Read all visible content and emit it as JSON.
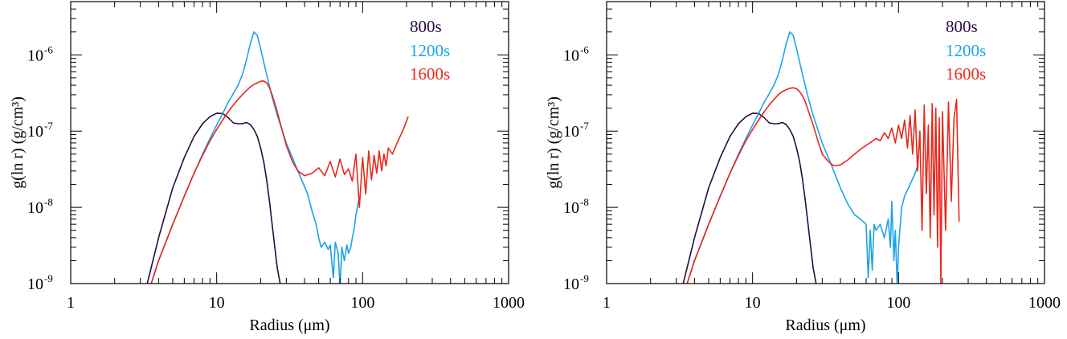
{
  "chart_data": [
    {
      "type": "line",
      "xlabel": "Radius (μm)",
      "ylabel": "g(ln r) (g/cm³)",
      "xscale": "log",
      "yscale": "log",
      "xlim": [
        1,
        1000
      ],
      "ylim": [
        1e-09,
        5e-06
      ],
      "x_ticks": [
        1,
        10,
        100,
        1000
      ],
      "x_tick_labels": [
        "1",
        "10",
        "100",
        "1000"
      ],
      "y_ticks": [
        1e-09,
        1e-08,
        1e-07,
        1e-06
      ],
      "y_tick_labels": [
        {
          "base": "10",
          "exp": "-9"
        },
        {
          "base": "10",
          "exp": "-8"
        },
        {
          "base": "10",
          "exp": "-7"
        },
        {
          "base": "10",
          "exp": "-6"
        }
      ],
      "grid": false,
      "legend_position": "top-right",
      "series": [
        {
          "name": "800s",
          "color": "#2a0a3c",
          "x": [
            3.3,
            4.0,
            5.0,
            6.0,
            7.0,
            8.0,
            9.0,
            10.0,
            11.0,
            12.0,
            13.0,
            14.0,
            15.0,
            16.0,
            17.0,
            18.0,
            19.0,
            20.0,
            21.0,
            22.0,
            23.0,
            24.0,
            25.0,
            26.0,
            27.0,
            27.5
          ],
          "y": [
            9e-10,
            4e-09,
            1.8e-08,
            4.5e-08,
            8.5e-08,
            1.25e-07,
            1.55e-07,
            1.72e-07,
            1.7e-07,
            1.5e-07,
            1.28e-07,
            1.25e-07,
            1.25e-07,
            1.3e-07,
            1.22e-07,
            1.05e-07,
            8.5e-08,
            6e-08,
            4e-08,
            2.3e-08,
            1.2e-08,
            6e-09,
            3e-09,
            1.6e-09,
            1.1e-09,
            9e-10
          ]
        },
        {
          "name": "1200s",
          "color": "#1aa3e8",
          "x": [
            3.5,
            4.0,
            5.0,
            6.0,
            7.0,
            8.0,
            9.0,
            10.0,
            11.0,
            12.0,
            13.0,
            14.0,
            15.0,
            16.0,
            17.0,
            18.0,
            19.0,
            20.0,
            22.0,
            24.0,
            26.0,
            28.0,
            30.0,
            33.0,
            36.0,
            39.0,
            42.0,
            45.0,
            48.0,
            50.0,
            52.0,
            55.0,
            58.0,
            60.0,
            63.0,
            65.0,
            68.0,
            70.0,
            72.0,
            75.0,
            78.0,
            80.0,
            83.0,
            85.0,
            88.0,
            90.0,
            92.0,
            95.0
          ],
          "y": [
            9e-10,
            2e-09,
            6e-09,
            1.4e-08,
            2.8e-08,
            5e-08,
            8e-08,
            1.2e-07,
            1.7e-07,
            2.4e-07,
            3.1e-07,
            4e-07,
            5.5e-07,
            8.5e-07,
            1.4e-06,
            2e-06,
            1.8e-06,
            1.2e-06,
            5.5e-07,
            2.8e-07,
            1.6e-07,
            1.05e-07,
            7e-08,
            4.5e-08,
            3e-08,
            2.1e-08,
            1.5e-08,
            9e-09,
            6e-09,
            4e-09,
            3e-09,
            3.5e-09,
            2.8e-09,
            3.2e-09,
            1.2e-09,
            3.5e-09,
            2.5e-09,
            9e-10,
            3e-09,
            2e-09,
            3.2e-09,
            2.5e-09,
            3e-09,
            4e-09,
            5.5e-09,
            8e-09,
            1e-08,
            1.4e-08
          ]
        },
        {
          "name": "1600s",
          "color": "#e8281c",
          "x": [
            3.5,
            4.0,
            5.0,
            6.0,
            7.0,
            8.0,
            9.0,
            10.0,
            11.0,
            12.0,
            13.0,
            14.0,
            15.0,
            16.0,
            17.0,
            18.0,
            19.0,
            20.0,
            21.0,
            22.0,
            23.0,
            24.0,
            26.0,
            28.0,
            30.0,
            33.0,
            36.0,
            40.0,
            45.0,
            50.0,
            55.0,
            60.0,
            65.0,
            70.0,
            75.0,
            80.0,
            85.0,
            90.0,
            95.0,
            100.0,
            105.0,
            110.0,
            115.0,
            120.0,
            125.0,
            130.0,
            135.0,
            140.0,
            145.0,
            150.0,
            160.0,
            175.0,
            190.0,
            205.0
          ],
          "y": [
            9e-10,
            2e-09,
            6e-09,
            1.4e-08,
            2.8e-08,
            4.8e-08,
            7.5e-08,
            1.05e-07,
            1.4e-07,
            1.8e-07,
            2.2e-07,
            2.6e-07,
            3e-07,
            3.4e-07,
            3.8e-07,
            4.1e-07,
            4.3e-07,
            4.5e-07,
            4.55e-07,
            4.3e-07,
            3.7e-07,
            3e-07,
            1.8e-07,
            1.05e-07,
            6.5e-08,
            4e-08,
            3e-08,
            2.6e-08,
            2.8e-08,
            3.3e-08,
            2.6e-08,
            4e-08,
            2.5e-08,
            4.3e-08,
            2.7e-08,
            3.2e-08,
            2.2e-08,
            5e-08,
            1e-08,
            4.5e-08,
            1.5e-08,
            5.5e-08,
            2.3e-08,
            4.8e-08,
            2.8e-08,
            5.5e-08,
            3e-08,
            5e-08,
            3.5e-08,
            6e-08,
            5e-08,
            7.5e-08,
            1.05e-07,
            1.55e-07
          ]
        }
      ]
    },
    {
      "type": "line",
      "xlabel": "Radius (μm)",
      "ylabel": "g(ln r) (g/cm³)",
      "xscale": "log",
      "yscale": "log",
      "xlim": [
        1,
        1000
      ],
      "ylim": [
        1e-09,
        5e-06
      ],
      "x_ticks": [
        1,
        10,
        100,
        1000
      ],
      "x_tick_labels": [
        "1",
        "10",
        "100",
        "1000"
      ],
      "y_ticks": [
        1e-09,
        1e-08,
        1e-07,
        1e-06
      ],
      "y_tick_labels": [
        {
          "base": "10",
          "exp": "-9"
        },
        {
          "base": "10",
          "exp": "-8"
        },
        {
          "base": "10",
          "exp": "-7"
        },
        {
          "base": "10",
          "exp": "-6"
        }
      ],
      "grid": false,
      "legend_position": "top-right",
      "series": [
        {
          "name": "800s",
          "color": "#2a0a3c",
          "x": [
            3.3,
            4.0,
            5.0,
            6.0,
            7.0,
            8.0,
            9.0,
            10.0,
            11.0,
            12.0,
            13.0,
            14.0,
            15.0,
            16.0,
            17.0,
            18.0,
            19.0,
            20.0,
            21.0,
            22.0,
            23.0,
            24.0,
            25.0,
            26.0,
            27.0,
            27.5
          ],
          "y": [
            9e-10,
            4e-09,
            1.8e-08,
            4.5e-08,
            8.5e-08,
            1.25e-07,
            1.55e-07,
            1.72e-07,
            1.7e-07,
            1.5e-07,
            1.28e-07,
            1.25e-07,
            1.25e-07,
            1.3e-07,
            1.22e-07,
            1.05e-07,
            8.5e-08,
            6e-08,
            4e-08,
            2.3e-08,
            1.2e-08,
            6e-09,
            3e-09,
            1.6e-09,
            1.1e-09,
            9e-10
          ]
        },
        {
          "name": "1200s",
          "color": "#1aa3e8",
          "x": [
            3.5,
            4.0,
            5.0,
            6.0,
            7.0,
            8.0,
            9.0,
            10.0,
            11.0,
            12.0,
            13.0,
            14.0,
            15.0,
            16.0,
            17.0,
            18.0,
            19.0,
            20.0,
            22.0,
            24.0,
            26.0,
            28.0,
            30.0,
            33.0,
            36.0,
            40.0,
            45.0,
            50.0,
            55.0,
            60.0,
            62.0,
            64.0,
            66.0,
            68.0,
            70.0,
            75.0,
            80.0,
            85.0,
            88.0,
            90.0,
            93.0,
            95.0,
            98.0,
            100.0,
            105.0,
            110.0,
            120.0,
            130.0,
            135.0
          ],
          "y": [
            9e-10,
            2e-09,
            6e-09,
            1.4e-08,
            2.8e-08,
            5e-08,
            8e-08,
            1.2e-07,
            1.7e-07,
            2.4e-07,
            3.1e-07,
            4e-07,
            5.5e-07,
            8.5e-07,
            1.4e-06,
            2e-06,
            1.8e-06,
            1.2e-06,
            5.5e-07,
            2.8e-07,
            1.6e-07,
            1.05e-07,
            7e-08,
            4.5e-08,
            3e-08,
            1.8e-08,
            1.1e-08,
            8e-09,
            7e-09,
            6e-09,
            1.2e-09,
            5e-09,
            1.5e-09,
            6e-09,
            5e-09,
            6e-09,
            4e-09,
            7e-09,
            3e-09,
            1.2e-08,
            2e-09,
            5e-09,
            9e-10,
            3e-09,
            1e-08,
            1.4e-08,
            2e-08,
            2.8e-08,
            3.5e-08
          ]
        },
        {
          "name": "1600s",
          "color": "#e8281c",
          "x": [
            3.5,
            4.0,
            5.0,
            6.0,
            7.0,
            8.0,
            9.0,
            10.0,
            11.0,
            12.0,
            13.0,
            14.0,
            15.0,
            16.0,
            17.0,
            18.0,
            19.0,
            20.0,
            21.0,
            22.0,
            23.0,
            24.0,
            26.0,
            28.0,
            30.0,
            33.0,
            36.0,
            40.0,
            45.0,
            50.0,
            55.0,
            60.0,
            65.0,
            70.0,
            75.0,
            80.0,
            85.0,
            90.0,
            95.0,
            100.0,
            105.0,
            110.0,
            115.0,
            120.0,
            125.0,
            130.0,
            135.0,
            140.0,
            145.0,
            150.0,
            155.0,
            160.0,
            165.0,
            170.0,
            175.0,
            180.0,
            185.0,
            190.0,
            195.0,
            200.0,
            210.0,
            220.0,
            230.0,
            240.0,
            250.0,
            260.0
          ],
          "y": [
            9e-10,
            2e-09,
            6e-09,
            1.4e-08,
            2.8e-08,
            4.8e-08,
            7.5e-08,
            1.05e-07,
            1.4e-07,
            1.8e-07,
            2.2e-07,
            2.6e-07,
            3e-07,
            3.3e-07,
            3.5e-07,
            3.65e-07,
            3.7e-07,
            3.6e-07,
            3.3e-07,
            2.9e-07,
            2.4e-07,
            1.9e-07,
            1.2e-07,
            7.5e-08,
            5e-08,
            4e-08,
            3.5e-08,
            3.6e-08,
            4.2e-08,
            5e-08,
            5.8e-08,
            6.5e-08,
            7.2e-08,
            8e-08,
            7.5e-08,
            9.5e-08,
            8e-08,
            1.1e-07,
            7e-08,
            1.2e-07,
            8e-08,
            1.4e-07,
            6e-08,
            1.6e-07,
            5e-08,
            1.9e-07,
            3e-08,
            1e-07,
            5e-09,
            2.2e-07,
            1.5e-08,
            1.2e-07,
            4e-09,
            2.3e-07,
            8e-09,
            2e-07,
            3e-09,
            1.5e-07,
            9e-10,
            1.8e-07,
            5e-09,
            2.4e-07,
            1.2e-08,
            1.5e-07,
            2.6e-07,
            6.5e-09
          ]
        }
      ]
    }
  ]
}
